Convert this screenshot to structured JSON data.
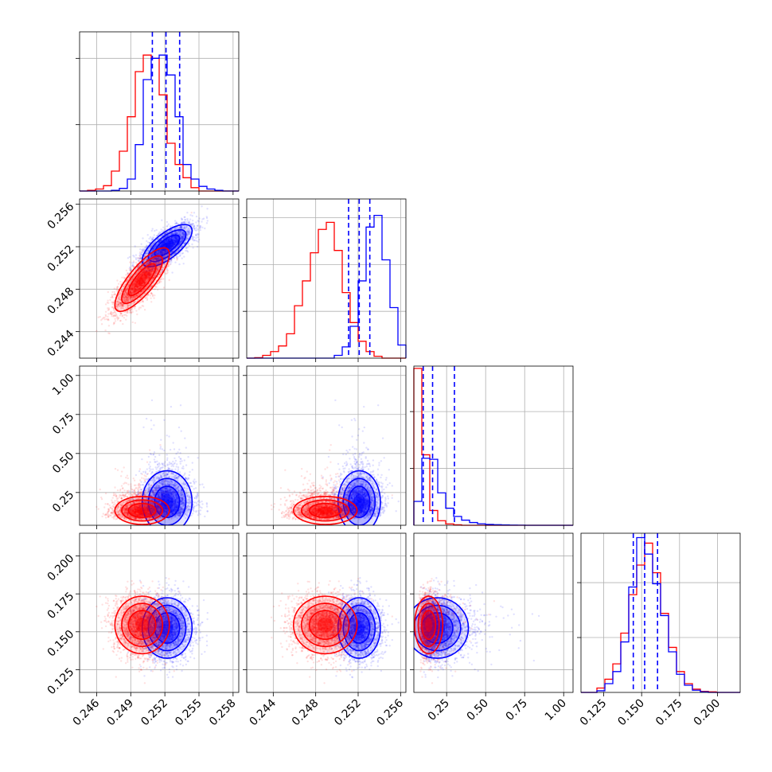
{
  "chart_data": {
    "type": "corner",
    "grid": true,
    "colors": {
      "red_sample": "#ff0000",
      "blue_sample": "#0000ff"
    },
    "params": [
      {
        "range": [
          0.2445,
          0.2585
        ],
        "ticks": [
          "0.246",
          "0.249",
          "0.252",
          "0.255",
          "0.258"
        ],
        "tick_values": [
          0.246,
          0.249,
          0.252,
          0.255,
          0.258
        ]
      },
      {
        "range": [
          0.2415,
          0.2565
        ],
        "ticks": [
          "0.244",
          "0.248",
          "0.252",
          "0.256"
        ],
        "tick_values": [
          0.244,
          0.248,
          0.252,
          0.256
        ]
      },
      {
        "range": [
          0.04,
          1.06
        ],
        "ticks": [
          "0.25",
          "0.50",
          "0.75",
          "1.00"
        ],
        "tick_values": [
          0.25,
          0.5,
          0.75,
          1.0
        ]
      },
      {
        "range": [
          0.11,
          0.215
        ],
        "ticks": [
          "0.125",
          "0.150",
          "0.175",
          "0.200"
        ],
        "tick_values": [
          0.125,
          0.15,
          0.175,
          0.2
        ]
      }
    ],
    "hist_ymax": [
      240,
      340,
      1400,
      290
    ],
    "hist_yticks": [
      [
        100,
        200
      ],
      [
        100,
        200,
        300
      ],
      [
        500,
        1000
      ],
      [
        100,
        200
      ]
    ],
    "hist_bins": [
      [
        0.2445,
        0.2585,
        20
      ],
      [
        0.2415,
        0.2565,
        20
      ],
      [
        0.04,
        1.06,
        20
      ],
      [
        0.11,
        0.215,
        20
      ]
    ],
    "hist": [
      {
        "red": [
          0,
          1,
          3,
          8,
          30,
          60,
          112,
          180,
          205,
          200,
          145,
          72,
          40,
          20,
          5,
          0,
          0,
          0,
          0,
          0
        ],
        "blue": [
          0,
          0,
          0,
          0,
          1,
          4,
          18,
          70,
          168,
          200,
          205,
          175,
          112,
          40,
          18,
          7,
          3,
          1,
          0,
          0
        ],
        "blue_quantiles": [
          0.2509,
          0.2521,
          0.2533
        ]
      },
      {
        "red": [
          0,
          1,
          6,
          14,
          26,
          52,
          112,
          165,
          225,
          275,
          290,
          230,
          140,
          76,
          36,
          14,
          4,
          0,
          0,
          0
        ],
        "blue": [
          0,
          0,
          0,
          0,
          0,
          0,
          0,
          0,
          0,
          0,
          0,
          6,
          24,
          68,
          165,
          280,
          305,
          210,
          108,
          28
        ],
        "blue_quantiles": [
          0.2511,
          0.2521,
          0.2531
        ]
      },
      {
        "red": [
          1380,
          620,
          130,
          40,
          12,
          4,
          0,
          0,
          0,
          0,
          0,
          0,
          0,
          0,
          0,
          0,
          0,
          0,
          0,
          0
        ],
        "blue": [
          210,
          590,
          580,
          285,
          150,
          78,
          45,
          24,
          13,
          8,
          5,
          3,
          2,
          1,
          0,
          0,
          0,
          0,
          0,
          0
        ],
        "blue_quantiles": [
          0.1,
          0.16,
          0.3
        ]
      },
      {
        "red": [
          0,
          0,
          8,
          24,
          52,
          108,
          178,
          232,
          272,
          218,
          144,
          82,
          38,
          16,
          6,
          2,
          1,
          0,
          0,
          0
        ],
        "blue": [
          0,
          0,
          3,
          16,
          38,
          92,
          192,
          282,
          252,
          198,
          140,
          74,
          33,
          13,
          4,
          1,
          0,
          0,
          0,
          0
        ],
        "blue_quantiles": [
          0.1445,
          0.152,
          0.1605
        ]
      }
    ],
    "dist": {
      "red": {
        "mean": [
          0.25,
          0.2489,
          0.135,
          0.1545
        ],
        "sd": [
          0.0012,
          0.0015,
          0.045,
          0.0095
        ],
        "rho01": 0.8
      },
      "blue": {
        "mean": [
          0.2522,
          0.2521,
          0.19,
          0.1525
        ],
        "sd": [
          0.0011,
          0.001,
          0.1,
          0.01
        ],
        "rho01": 0.7
      }
    }
  }
}
